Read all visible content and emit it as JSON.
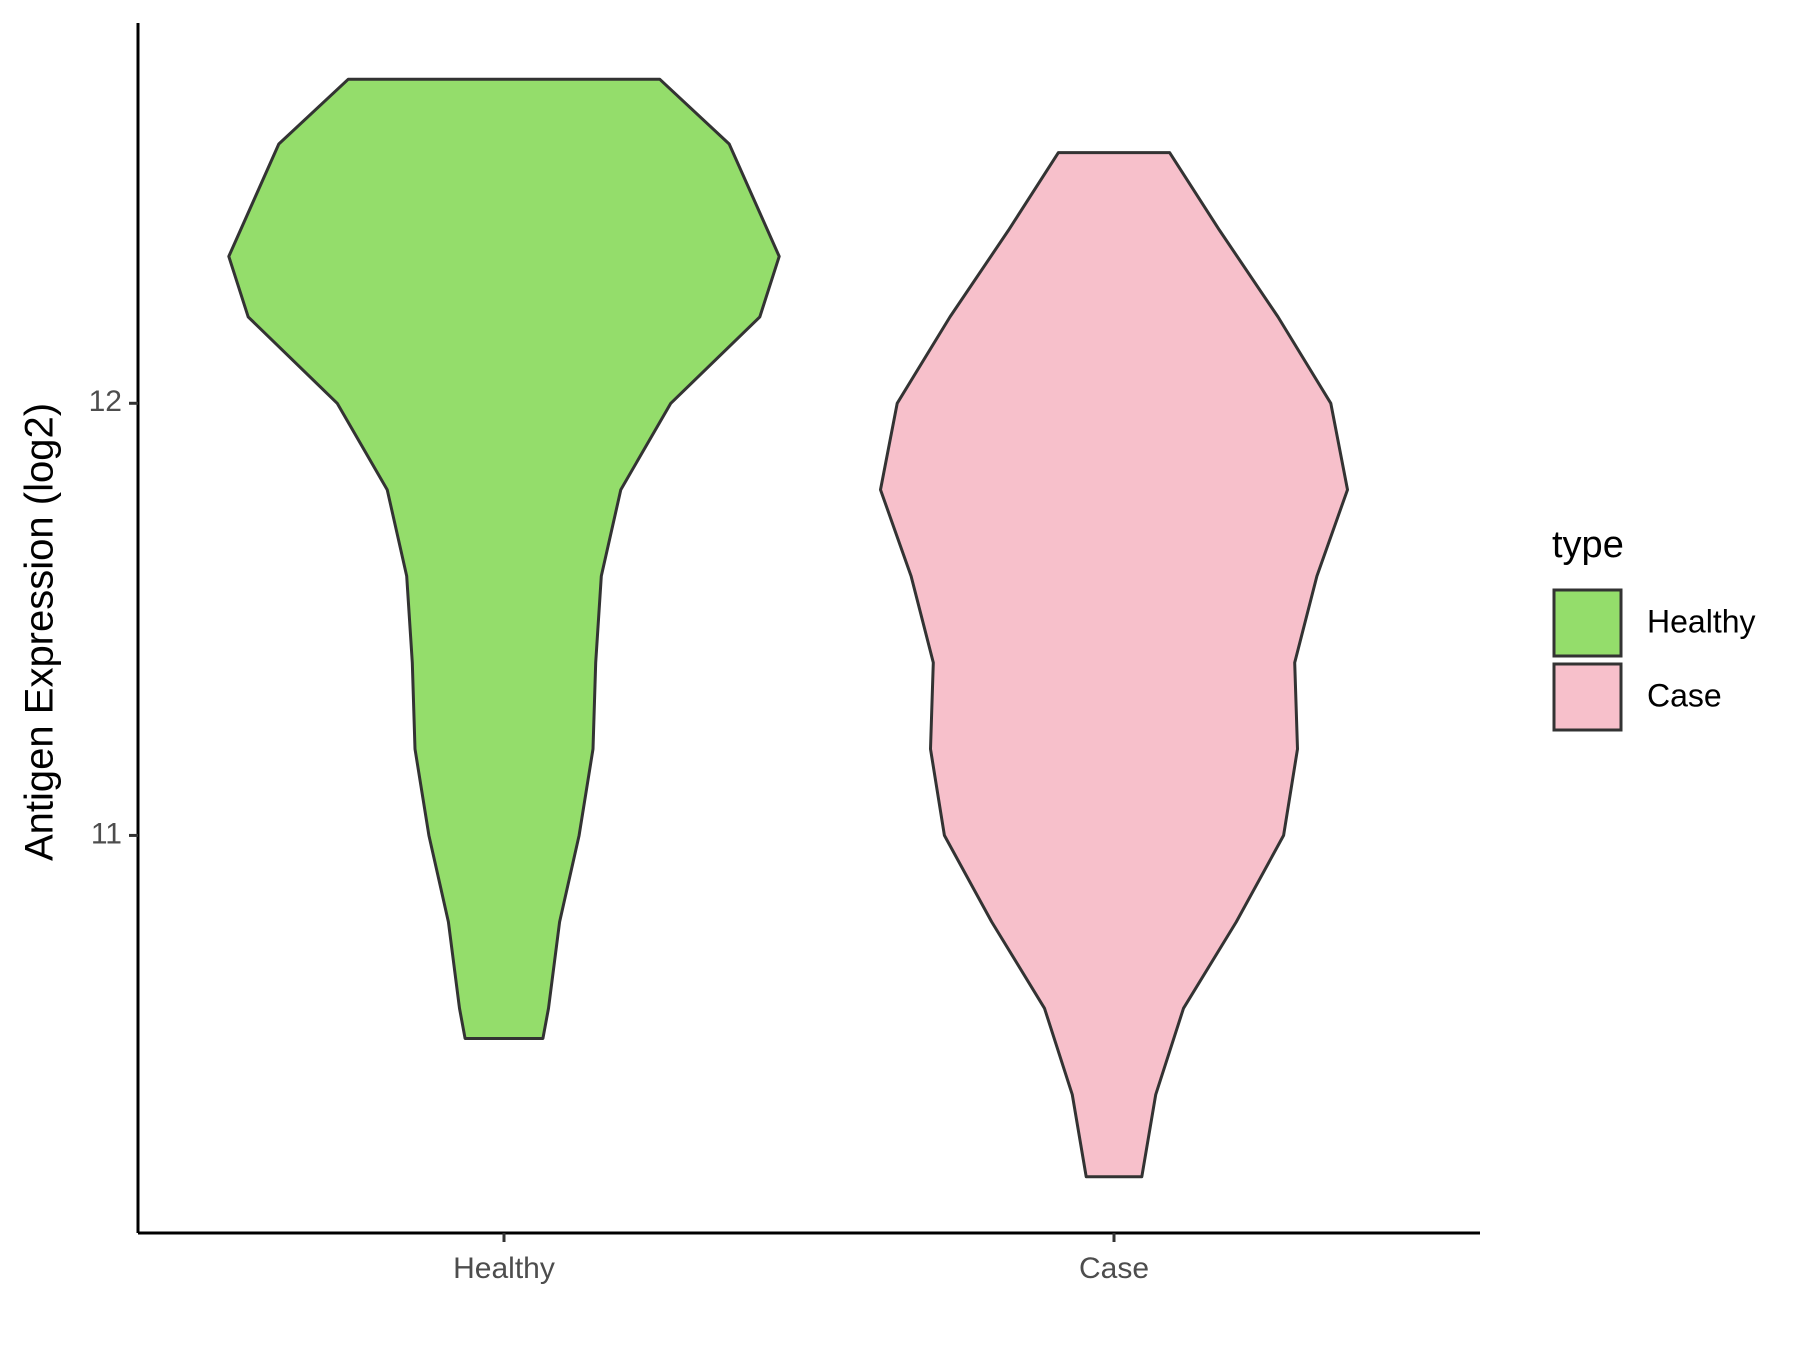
{
  "chart_data": {
    "type": "violin",
    "ylabel": "Antigen Expression (log2)",
    "categories": [
      "Healthy",
      "Case"
    ],
    "legend_title": "type",
    "legend": "right",
    "ylim": [
      10.08,
      12.88
    ],
    "yticks": [
      11,
      12
    ],
    "series": [
      {
        "name": "Healthy",
        "color": "#94dd6b",
        "y": [
          12.75,
          12.6,
          12.34,
          12.2,
          12.0,
          11.8,
          11.6,
          11.4,
          11.2,
          11.0,
          10.8,
          10.6,
          10.53
        ],
        "density": [
          0.56,
          0.81,
          0.99,
          0.92,
          0.6,
          0.42,
          0.35,
          0.33,
          0.32,
          0.27,
          0.2,
          0.16,
          0.14
        ]
      },
      {
        "name": "Case",
        "color": "#f7c0cb",
        "y": [
          12.58,
          12.4,
          12.2,
          12.0,
          11.8,
          11.6,
          11.4,
          11.2,
          11.0,
          10.8,
          10.6,
          10.4,
          10.21
        ],
        "density": [
          0.2,
          0.38,
          0.59,
          0.78,
          0.84,
          0.73,
          0.65,
          0.66,
          0.61,
          0.44,
          0.25,
          0.15,
          0.1
        ]
      }
    ]
  }
}
